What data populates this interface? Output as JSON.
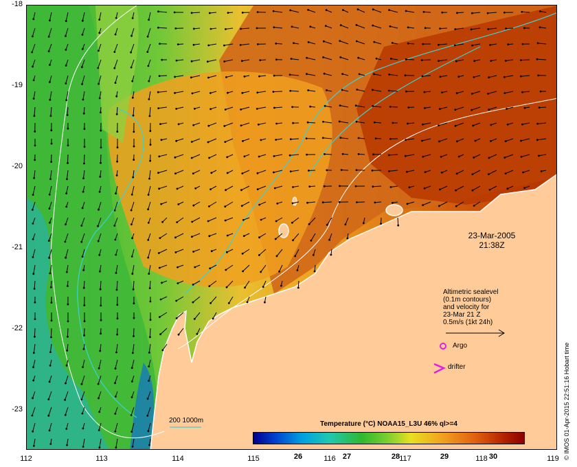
{
  "map": {
    "x_ticks": [
      "112",
      "113",
      "114",
      "115",
      "116",
      "117",
      "118",
      "119"
    ],
    "y_ticks": [
      "-18",
      "-19",
      "-20",
      "-21",
      "-22",
      "-23"
    ]
  },
  "annotation": {
    "date": "23-Mar-2005",
    "time": "21:38Z"
  },
  "legend": {
    "line1": "Altimetric sealevel",
    "line2": "(0.1m contours)",
    "line3": "and velocity for",
    "line4": "23-Mar 21 Z",
    "line5": "0.5m/s (1kt 24h)",
    "argo_label": "Argo",
    "drifter_label": "drifter"
  },
  "contour_key": "200  1000m",
  "colorbar": {
    "title": "Temperature (°C) NOAA15_L3U 46% ql>=4",
    "ticks": [
      "26",
      "27",
      "28",
      "29",
      "30"
    ]
  },
  "side_credit": "© IMOS 01-Apr-2015 22:51:16 Hobart time",
  "colors": {
    "land": "#ffcc99",
    "hot": "#c84000",
    "warm": "#e89020",
    "mid": "#f0b030",
    "cool": "#50c040",
    "cold": "#1090d0",
    "contour_cyan": "#40d0d0",
    "marker_magenta": "#e020e0"
  }
}
